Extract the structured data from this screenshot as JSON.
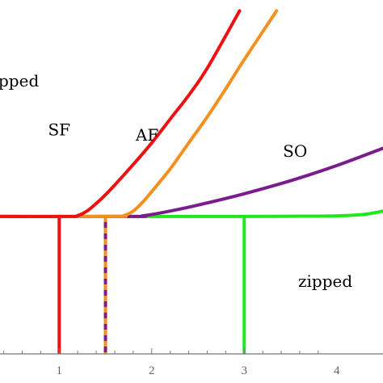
{
  "chart_data": {
    "type": "line",
    "title": "",
    "xlabel": "",
    "ylabel": "",
    "xlim": [
      0.36,
      4.5
    ],
    "ylim": [
      -1.27,
      2.0
    ],
    "x_ticks": [
      "1",
      "2",
      "3",
      "4"
    ],
    "x_tick_values": [
      1,
      2,
      3,
      4
    ],
    "grid": false,
    "series": [
      {
        "name": "SF",
        "color": "#ee1111",
        "x": [
          0.36,
          1.1,
          1.2,
          1.3,
          1.4,
          1.5,
          1.6,
          1.8,
          2.0,
          2.2,
          2.4,
          2.6,
          2.95
        ],
        "y": [
          0,
          0,
          0.008,
          0.05,
          0.12,
          0.2,
          0.29,
          0.48,
          0.68,
          0.9,
          1.12,
          1.37,
          1.9
        ]
      },
      {
        "name": "AF",
        "color": "#f39020",
        "x": [
          0.36,
          1.6,
          1.7,
          1.8,
          1.9,
          2.0,
          2.2,
          2.4,
          2.6,
          2.8,
          3.0,
          3.35
        ],
        "y": [
          0,
          0,
          0.008,
          0.05,
          0.13,
          0.23,
          0.44,
          0.68,
          0.92,
          1.18,
          1.45,
          1.9
        ]
      },
      {
        "name": "SO",
        "color": "#7a1c8c",
        "x": [
          0.36,
          1.8,
          1.9,
          2.0,
          2.2,
          2.5,
          3.0,
          3.5,
          4.0,
          4.5
        ],
        "y": [
          0,
          0,
          0.006,
          0.018,
          0.05,
          0.105,
          0.21,
          0.33,
          0.47,
          0.63
        ]
      },
      {
        "name": "",
        "color": "#1fe81f",
        "x": [
          0.36,
          2.5,
          3.0,
          3.5,
          4.0,
          4.3,
          4.5
        ],
        "y": [
          0,
          0,
          0,
          0.002,
          0.006,
          0.02,
          0.05
        ]
      }
    ],
    "vertical_lines": [
      {
        "x": 1.0,
        "color": "#ee1111",
        "style": "solid",
        "y_from": 0,
        "y_to": -1.27
      },
      {
        "x": 1.5,
        "color": "#7a1c8c",
        "color2": "#f39020",
        "style": "dashed-two-tone",
        "y_from": 0,
        "y_to": -1.27
      },
      {
        "x": 3.0,
        "color": "#1fe81f",
        "style": "solid",
        "y_from": 0,
        "y_to": -1.27
      }
    ],
    "region_labels": [
      {
        "text": "pped",
        "x": 0.36,
        "y": 1.2
      },
      {
        "text": "zipped",
        "x": 3.6,
        "y": -0.65
      }
    ],
    "curve_labels": [
      {
        "text": "SF",
        "x": 1.0,
        "y": 0.75
      },
      {
        "text": "AF",
        "x": 1.95,
        "y": 0.7
      },
      {
        "text": "SO",
        "x": 3.55,
        "y": 0.55
      }
    ]
  }
}
